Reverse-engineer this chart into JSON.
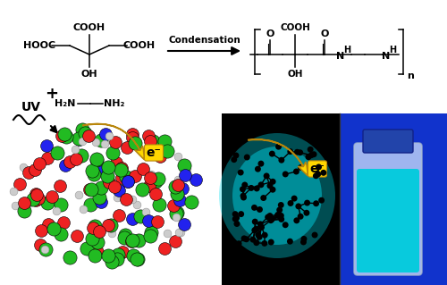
{
  "background_color": "#ffffff",
  "condensation_text": "Condensation",
  "uv_text": "UV",
  "e_minus_text": "e⁻",
  "atom_colors": {
    "C": "#22bb22",
    "O": "#ee2222",
    "N": "#2222ee",
    "H": "#cccccc"
  },
  "yellow_arrow": "#FFD700",
  "yellow_arrow_edge": "#B8860B",
  "black": "#000000",
  "cyan_glow": "#00ddee",
  "dark_mol": "#111111",
  "right_blue": "#1133cc",
  "fig_width": 5.0,
  "fig_height": 3.19,
  "dpi": 100
}
